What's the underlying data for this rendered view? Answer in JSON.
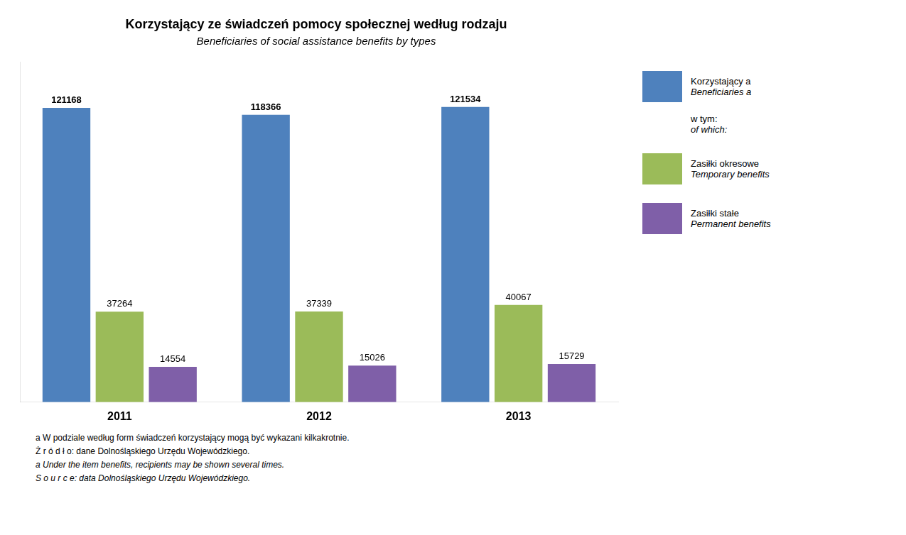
{
  "chart_data": {
    "type": "bar",
    "title": "Korzystający ze świadczeń pomocy społecznej według rodzaju",
    "subtitle": "Beneficiaries of social assistance benefits by types",
    "categories": [
      "2011",
      "2012",
      "2013"
    ],
    "series": [
      {
        "name": [
          "Korzystający a",
          "Beneficiaries a"
        ],
        "color": "#4E81BD",
        "values": [
          121168,
          118366,
          121534
        ]
      },
      {
        "name": [
          "Zasiłki okresowe",
          "Temporary benefits"
        ],
        "color": "#9BBB59",
        "values": [
          37264,
          37339,
          40067
        ]
      },
      {
        "name": [
          "Zasiłki stałe",
          "Permanent benefits"
        ],
        "color": "#7F5FA8",
        "values": [
          14554,
          15026,
          15729
        ]
      }
    ],
    "legend_note": [
      "w tym:",
      "of which:"
    ],
    "footnotes": [
      "a W podziale według form świadczeń korzystający mogą być wykazani kilkakrotnie.",
      "Ż r ó d ł o: dane Dolnośląskiego Urzędu Wojewódzkiego.",
      "a Under the item benefits, recipients may be shown several times.",
      "S o u r c e: data Dolnośląskiego Urzędu Wojewódzkiego."
    ],
    "ylim": [
      0,
      140000
    ],
    "tick_labels": "x",
    "grid": false,
    "legend": "right",
    "data_labels": true
  }
}
